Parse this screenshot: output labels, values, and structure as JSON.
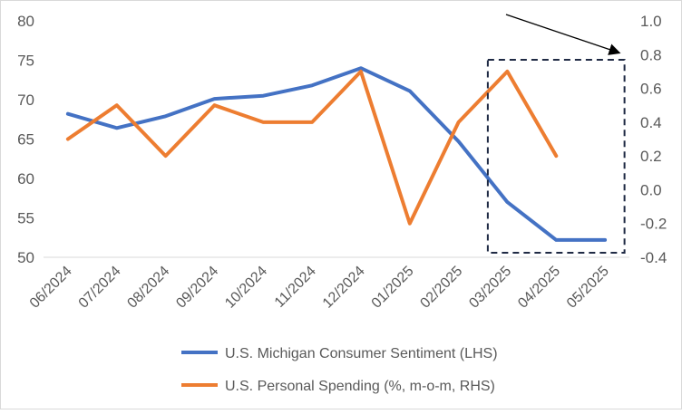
{
  "chart_data": {
    "type": "line",
    "categories": [
      "06/2024",
      "07/2024",
      "08/2024",
      "09/2024",
      "10/2024",
      "11/2024",
      "12/2024",
      "01/2025",
      "02/2025",
      "03/2025",
      "04/2025",
      "05/2025"
    ],
    "series": [
      {
        "name": "U.S. Michigan Consumer Sentiment (LHS)",
        "axis": "left",
        "color": "#4472C4",
        "values": [
          68.2,
          66.4,
          67.9,
          70.1,
          70.5,
          71.8,
          74.0,
          71.1,
          64.7,
          57.0,
          52.2,
          52.2
        ]
      },
      {
        "name": "U.S. Personal Spending (%, m-o-m, RHS)",
        "axis": "right",
        "color": "#ED7D31",
        "values": [
          0.3,
          0.5,
          0.2,
          0.5,
          0.4,
          0.4,
          0.7,
          -0.2,
          0.4,
          0.7,
          0.2,
          null
        ]
      }
    ],
    "y_left": {
      "min": 50,
      "max": 80,
      "ticks": [
        "50",
        "55",
        "60",
        "65",
        "70",
        "75",
        "80"
      ]
    },
    "y_right": {
      "min": -0.4,
      "max": 1.0,
      "ticks": [
        "-0.4",
        "-0.2",
        "0.0",
        "0.2",
        "0.4",
        "0.6",
        "0.8",
        "1.0"
      ]
    },
    "grid": false,
    "legend_position": "bottom",
    "annotations": [
      {
        "kind": "dashed-box",
        "from_category": "03/2025",
        "to_category": "05/2025",
        "note": "highlight"
      },
      {
        "kind": "arrow",
        "points_to": "right-axis"
      }
    ]
  }
}
